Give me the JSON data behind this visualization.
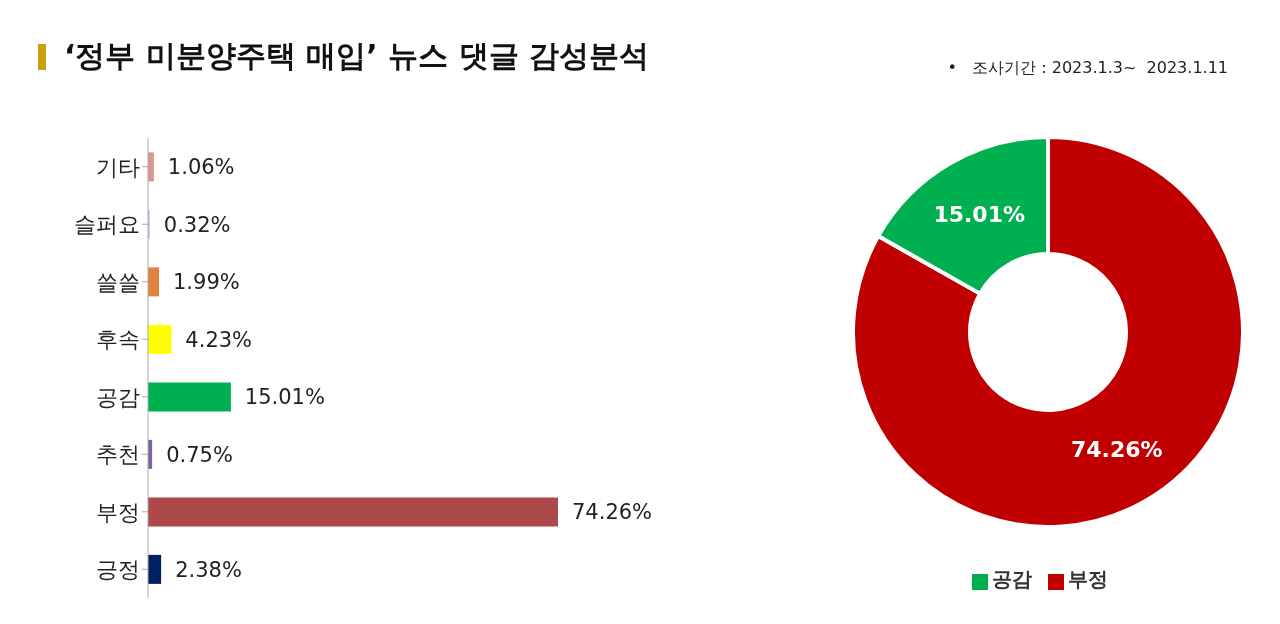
{
  "chart_data": [
    {
      "type": "bar",
      "orientation": "horizontal",
      "title": "‘정부 미분양주택 매입’ 뉴스 댓글 감성분석",
      "annotations": [
        "•   조사기간 : 2023.1.3~  2023.1.11"
      ],
      "categories": [
        "기타",
        "슬퍼요",
        "쓸쓸",
        "후속",
        "공감",
        "추천",
        "부정",
        "긍정"
      ],
      "values": [
        1.06,
        0.32,
        1.99,
        4.23,
        15.01,
        0.75,
        74.26,
        2.38
      ],
      "colors": [
        "#d99594",
        "#b4c6e7",
        "#e0823d",
        "#ffff00",
        "#00b050",
        "#8064a2",
        "#ab4a48",
        "#002060"
      ],
      "value_labels": [
        "1.06%",
        "0.32%",
        "1.99%",
        "4.23%",
        "15.01%",
        "0.75%",
        "74.26%",
        "2.38%"
      ]
    },
    {
      "type": "donut",
      "categories": [
        "부정",
        "공감"
      ],
      "values": [
        74.26,
        15.01
      ],
      "colors": [
        "#c00000",
        "#00b050"
      ],
      "value_labels": [
        "74.26%",
        "15.01%"
      ],
      "legend": "bottom"
    }
  ]
}
